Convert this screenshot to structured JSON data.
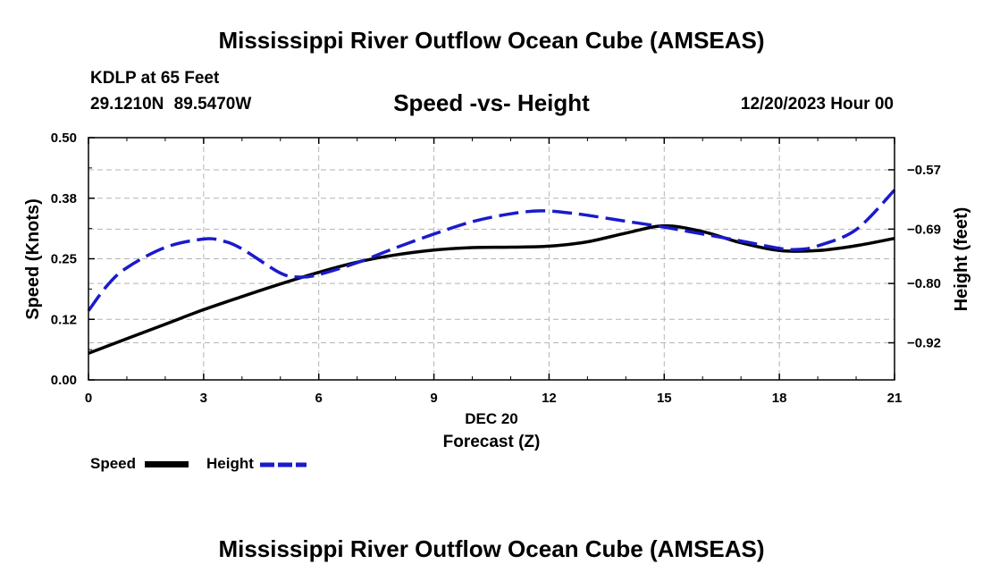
{
  "header": {
    "title": "Mississippi River Outflow Ocean Cube (AMSEAS)",
    "station": "KDLP at 65 Feet",
    "latlon": "29.1210N  89.5470W",
    "subtitle": "Speed -vs- Height",
    "datetime": "12/20/2023 Hour 00"
  },
  "footer": {
    "title": "Mississippi River Outflow Ocean Cube (AMSEAS)"
  },
  "legend": {
    "speed_label": "Speed",
    "height_label": "Height"
  },
  "colors": {
    "speed": "#000000",
    "height": "#1a1acc",
    "grid": "#b4b4b4"
  },
  "chart_data": {
    "type": "line",
    "title": "Speed -vs- Height",
    "xlabel": "Forecast (Z)",
    "xsublabel": "DEC 20",
    "ylabel": "Speed (Knots)",
    "y2label": "Height (feet)",
    "xlim": [
      0,
      21
    ],
    "ylim": [
      0,
      0.5
    ],
    "y2lim": [
      -0.995,
      -0.505
    ],
    "xticks": [
      0,
      3,
      6,
      9,
      12,
      15,
      18,
      21
    ],
    "xtick_labels": [
      "0",
      "3",
      "6",
      "9",
      "12",
      "15",
      "18",
      "21"
    ],
    "yticks": [
      0,
      0.125,
      0.25,
      0.375,
      0.5
    ],
    "ytick_labels": [
      "0.00",
      "0.12",
      "0.25",
      "0.38",
      "0.50"
    ],
    "y2ticks": [
      -0.92,
      -0.8,
      -0.69,
      -0.57
    ],
    "y2tick_labels": [
      "−0.92",
      "−0.80",
      "−0.69",
      "−0.57"
    ],
    "series": [
      {
        "name": "Speed",
        "axis": "left",
        "style": "solid",
        "x": [
          0,
          1,
          2,
          3,
          4,
          5,
          6,
          7,
          8,
          9,
          10,
          11,
          12,
          13,
          14,
          15,
          16,
          17,
          18,
          19,
          20,
          21
        ],
        "values": [
          0.055,
          0.085,
          0.115,
          0.145,
          0.172,
          0.198,
          0.222,
          0.243,
          0.258,
          0.268,
          0.273,
          0.274,
          0.276,
          0.285,
          0.303,
          0.318,
          0.306,
          0.283,
          0.267,
          0.267,
          0.277,
          0.292
        ]
      },
      {
        "name": "Height",
        "axis": "right",
        "style": "dashed",
        "x": [
          0,
          0.5,
          1,
          2,
          3,
          3.5,
          4,
          5,
          5.5,
          6,
          7,
          8,
          9,
          10,
          11,
          11.8,
          12.5,
          13,
          14,
          15,
          16,
          17,
          18,
          18.5,
          19,
          20,
          21
        ],
        "values": [
          -0.855,
          -0.803,
          -0.768,
          -0.727,
          -0.71,
          -0.714,
          -0.73,
          -0.779,
          -0.787,
          -0.782,
          -0.758,
          -0.728,
          -0.7,
          -0.675,
          -0.659,
          -0.653,
          -0.657,
          -0.662,
          -0.674,
          -0.686,
          -0.7,
          -0.714,
          -0.729,
          -0.731,
          -0.724,
          -0.691,
          -0.611
        ]
      }
    ]
  }
}
